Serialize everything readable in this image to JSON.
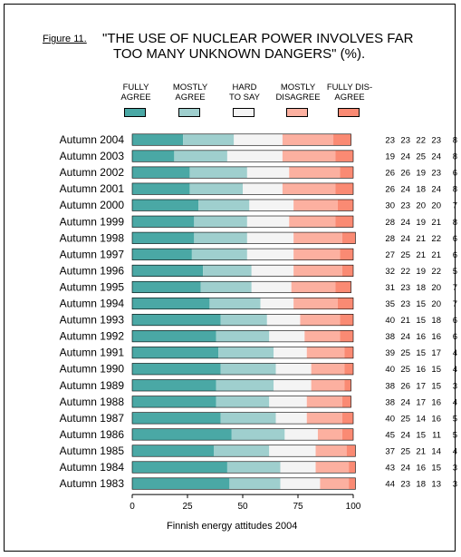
{
  "figure_label": "Figure 11.",
  "title_line1": "\"THE USE OF NUCLEAR POWER INVOLVES FAR",
  "title_line2": "TOO MANY UNKNOWN DANGERS\" (%).",
  "caption": "Finnish energy attitudes 2004",
  "legend": [
    {
      "line1": "FULLY",
      "line2": "AGREE",
      "color": "#4aa8a5"
    },
    {
      "line1": "MOSTLY",
      "line2": "AGREE",
      "color": "#9fcfce"
    },
    {
      "line1": "HARD",
      "line2": "TO SAY",
      "color": "#f4f4f4"
    },
    {
      "line1": "MOSTLY",
      "line2": "DISAGREE",
      "color": "#fcb0a0"
    },
    {
      "line1": "FULLY DIS-",
      "line2": "AGREE",
      "color": "#fa8a73"
    }
  ],
  "chart_data": {
    "type": "bar",
    "orientation": "horizontal",
    "stacked": true,
    "categories": [
      "Autumn 2004",
      "Autumn 2003",
      "Autumn 2002",
      "Autumn 2001",
      "Autumn 2000",
      "Autumn 1999",
      "Autumn 1998",
      "Autumn 1997",
      "Autumn 1996",
      "Autumn 1995",
      "Autumn 1994",
      "Autumn 1993",
      "Autumn 1992",
      "Autumn 1991",
      "Autumn 1990",
      "Autumn 1989",
      "Autumn 1988",
      "Autumn 1987",
      "Autumn 1986",
      "Autumn 1985",
      "Autumn 1984",
      "Autumn 1983"
    ],
    "series": [
      {
        "name": "FULLY AGREE",
        "values": [
          23,
          19,
          26,
          26,
          30,
          28,
          28,
          27,
          32,
          31,
          35,
          40,
          38,
          39,
          40,
          38,
          38,
          40,
          45,
          37,
          43,
          44
        ]
      },
      {
        "name": "MOSTLY AGREE",
        "values": [
          23,
          24,
          26,
          24,
          23,
          24,
          24,
          25,
          22,
          23,
          23,
          21,
          24,
          25,
          25,
          26,
          24,
          25,
          24,
          25,
          24,
          23
        ]
      },
      {
        "name": "HARD TO SAY",
        "values": [
          22,
          25,
          19,
          18,
          20,
          19,
          21,
          21,
          19,
          18,
          15,
          15,
          16,
          15,
          16,
          17,
          17,
          14,
          15,
          21,
          16,
          18
        ]
      },
      {
        "name": "MOSTLY DISAGREE",
        "values": [
          23,
          24,
          23,
          24,
          20,
          21,
          22,
          21,
          22,
          20,
          20,
          18,
          16,
          17,
          15,
          15,
          16,
          16,
          11,
          14,
          15,
          13
        ]
      },
      {
        "name": "FULLY DIS-AGREE",
        "values": [
          8,
          8,
          6,
          8,
          7,
          8,
          6,
          6,
          5,
          7,
          7,
          6,
          6,
          4,
          4,
          3,
          4,
          5,
          5,
          4,
          3,
          3
        ]
      }
    ],
    "xlim": [
      0,
      100
    ],
    "xticks": [
      0,
      25,
      50,
      75,
      100
    ],
    "grid": false
  }
}
